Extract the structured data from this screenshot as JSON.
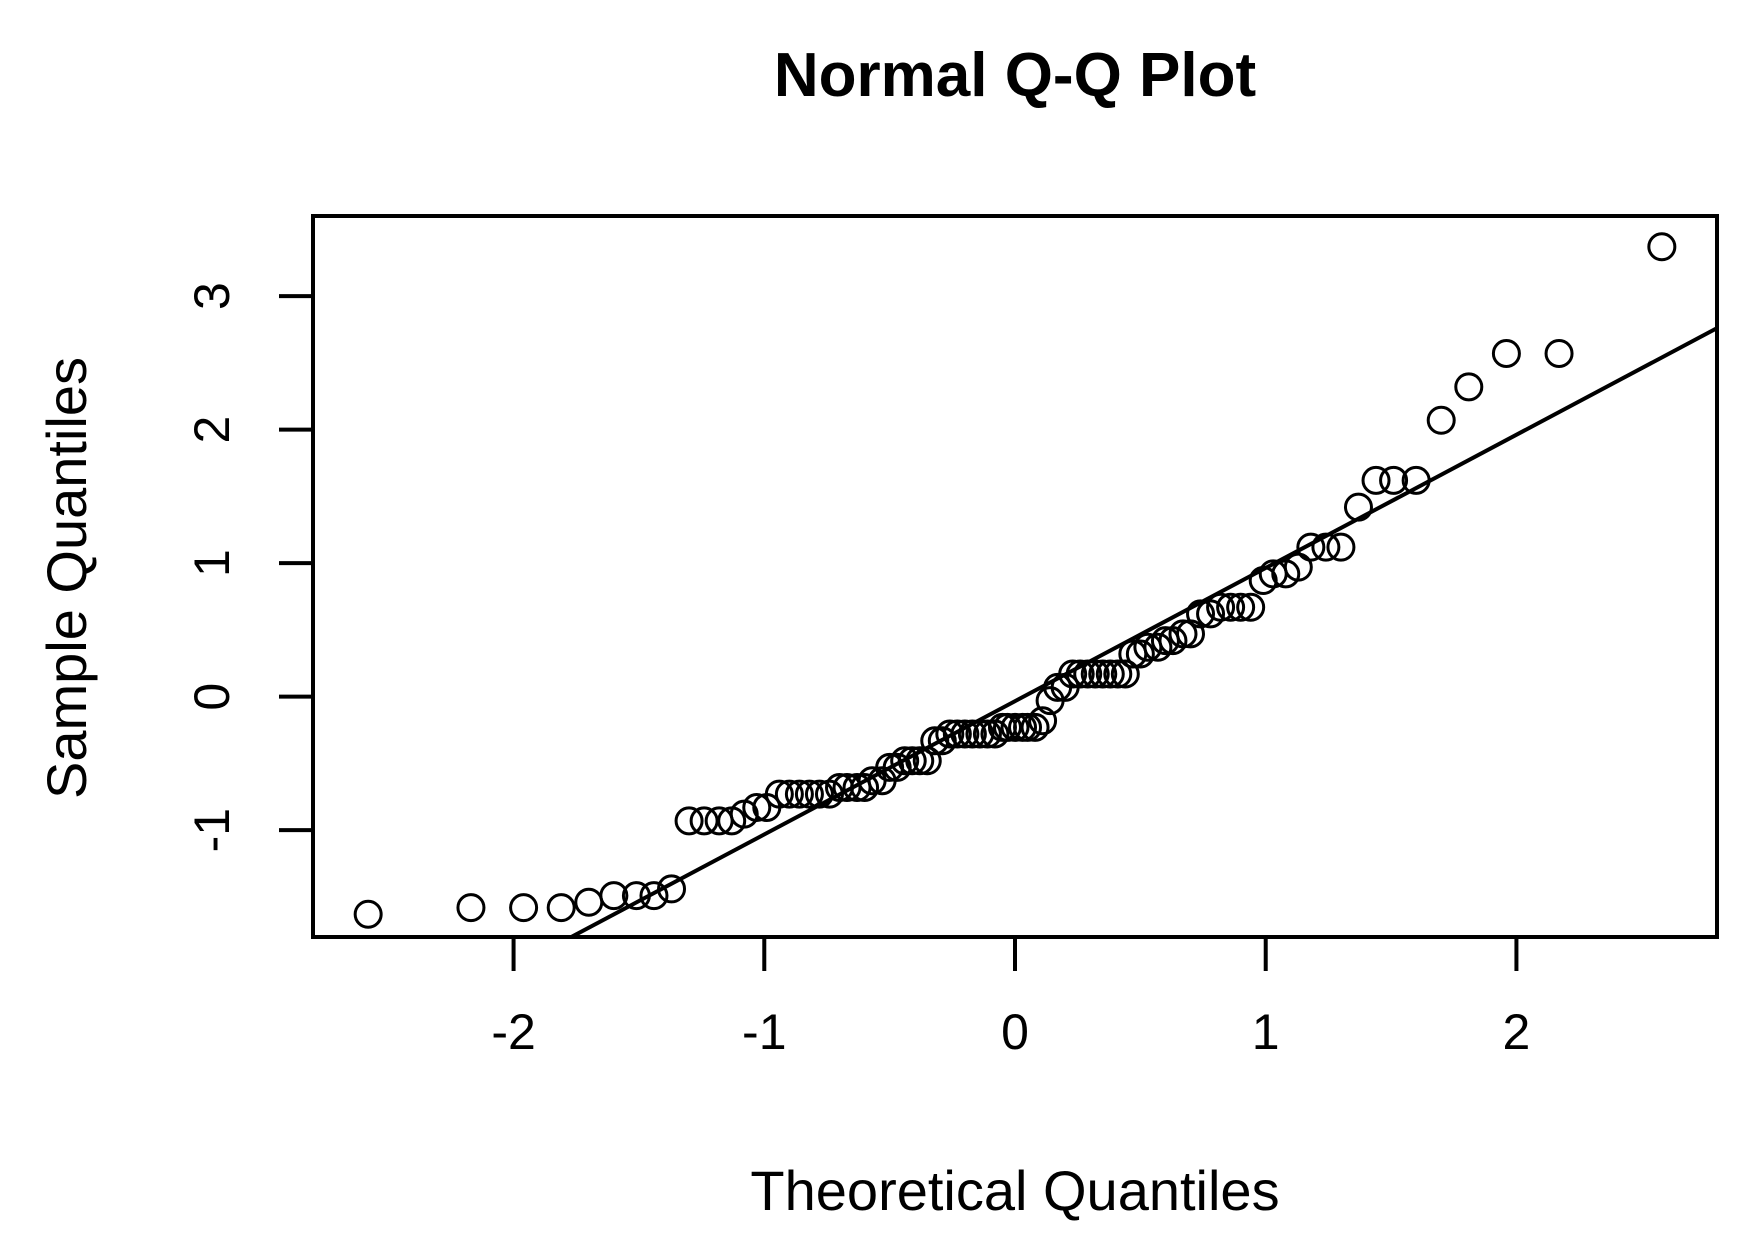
{
  "chart_data": {
    "type": "scatter",
    "title": "Normal Q-Q Plot",
    "xlabel": "Theoretical Quantiles",
    "ylabel": "Sample Quantiles",
    "xlim": [
      -2.8,
      2.8
    ],
    "ylim": [
      -1.8,
      3.6
    ],
    "x_ticks": [
      -2,
      -1,
      0,
      1,
      2
    ],
    "y_ticks": [
      -1,
      0,
      1,
      2,
      3
    ],
    "x_tick_labels": [
      "-2",
      "-1",
      "0",
      "1",
      "2"
    ],
    "y_tick_labels": [
      "-1",
      "0",
      "1",
      "2",
      "3"
    ],
    "grid": false,
    "reference_line": {
      "x": [
        -1.83,
        2.8
      ],
      "y": [
        -1.86,
        2.76
      ]
    },
    "points": [
      [
        -2.58,
        -1.63
      ],
      [
        -2.17,
        -1.58
      ],
      [
        -1.96,
        -1.58
      ],
      [
        -1.81,
        -1.58
      ],
      [
        -1.7,
        -1.54
      ],
      [
        -1.6,
        -1.49
      ],
      [
        -1.51,
        -1.49
      ],
      [
        -1.44,
        -1.49
      ],
      [
        -1.37,
        -1.44
      ],
      [
        -1.3,
        -0.93
      ],
      [
        -1.24,
        -0.93
      ],
      [
        -1.18,
        -0.93
      ],
      [
        -1.13,
        -0.93
      ],
      [
        -1.08,
        -0.88
      ],
      [
        -1.03,
        -0.83
      ],
      [
        -0.99,
        -0.83
      ],
      [
        -0.94,
        -0.73
      ],
      [
        -0.9,
        -0.73
      ],
      [
        -0.86,
        -0.73
      ],
      [
        -0.82,
        -0.73
      ],
      [
        -0.78,
        -0.73
      ],
      [
        -0.74,
        -0.73
      ],
      [
        -0.7,
        -0.68
      ],
      [
        -0.67,
        -0.68
      ],
      [
        -0.63,
        -0.68
      ],
      [
        -0.6,
        -0.68
      ],
      [
        -0.57,
        -0.63
      ],
      [
        -0.53,
        -0.63
      ],
      [
        -0.5,
        -0.53
      ],
      [
        -0.47,
        -0.53
      ],
      [
        -0.44,
        -0.48
      ],
      [
        -0.41,
        -0.48
      ],
      [
        -0.38,
        -0.48
      ],
      [
        -0.35,
        -0.48
      ],
      [
        -0.32,
        -0.33
      ],
      [
        -0.29,
        -0.33
      ],
      [
        -0.26,
        -0.28
      ],
      [
        -0.23,
        -0.28
      ],
      [
        -0.2,
        -0.28
      ],
      [
        -0.17,
        -0.28
      ],
      [
        -0.14,
        -0.28
      ],
      [
        -0.11,
        -0.28
      ],
      [
        -0.08,
        -0.28
      ],
      [
        -0.05,
        -0.23
      ],
      [
        -0.03,
        -0.23
      ],
      [
        0.0,
        -0.23
      ],
      [
        0.03,
        -0.23
      ],
      [
        0.05,
        -0.23
      ],
      [
        0.08,
        -0.23
      ],
      [
        0.11,
        -0.18
      ],
      [
        0.14,
        -0.03
      ],
      [
        0.17,
        0.07
      ],
      [
        0.2,
        0.07
      ],
      [
        0.23,
        0.17
      ],
      [
        0.26,
        0.17
      ],
      [
        0.29,
        0.17
      ],
      [
        0.32,
        0.17
      ],
      [
        0.35,
        0.17
      ],
      [
        0.38,
        0.17
      ],
      [
        0.41,
        0.17
      ],
      [
        0.44,
        0.17
      ],
      [
        0.47,
        0.32
      ],
      [
        0.5,
        0.32
      ],
      [
        0.53,
        0.37
      ],
      [
        0.57,
        0.37
      ],
      [
        0.6,
        0.42
      ],
      [
        0.63,
        0.42
      ],
      [
        0.67,
        0.47
      ],
      [
        0.7,
        0.47
      ],
      [
        0.74,
        0.62
      ],
      [
        0.78,
        0.62
      ],
      [
        0.82,
        0.67
      ],
      [
        0.86,
        0.67
      ],
      [
        0.9,
        0.67
      ],
      [
        0.94,
        0.67
      ],
      [
        0.99,
        0.87
      ],
      [
        1.03,
        0.92
      ],
      [
        1.08,
        0.92
      ],
      [
        1.13,
        0.97
      ],
      [
        1.18,
        1.12
      ],
      [
        1.24,
        1.12
      ],
      [
        1.3,
        1.12
      ],
      [
        1.37,
        1.42
      ],
      [
        1.44,
        1.62
      ],
      [
        1.51,
        1.62
      ],
      [
        1.6,
        1.62
      ],
      [
        1.7,
        2.07
      ],
      [
        1.81,
        2.32
      ],
      [
        1.96,
        2.57
      ],
      [
        2.17,
        2.57
      ],
      [
        2.58,
        3.37
      ]
    ]
  }
}
